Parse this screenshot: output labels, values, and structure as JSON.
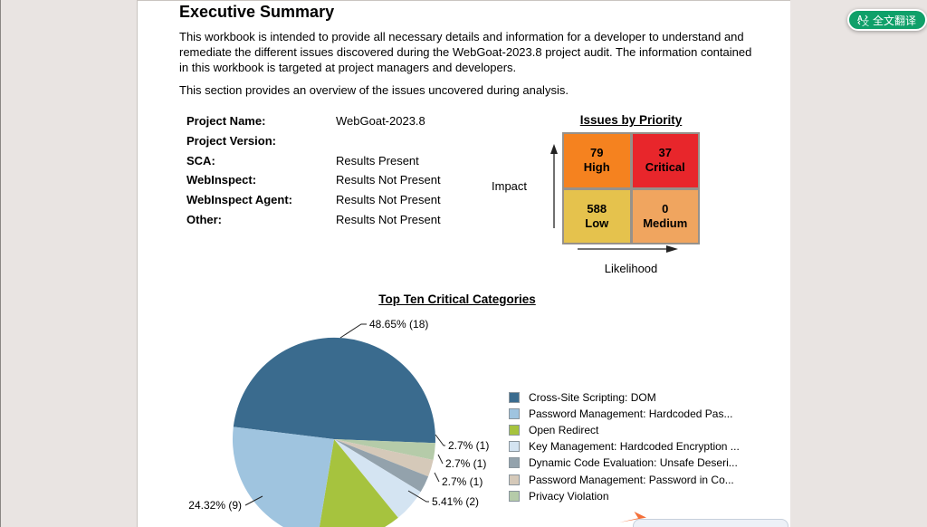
{
  "page": {
    "heading": "Executive Summary",
    "paragraph1": "This workbook is intended to provide all necessary details and information for a developer to understand and remediate the different issues discovered during the WebGoat-2023.8 project audit. The information contained in this workbook is targeted at project managers and developers.",
    "paragraph2": "This section provides an overview of the issues uncovered during analysis."
  },
  "fields": [
    {
      "label": "Project Name:",
      "value": "WebGoat-2023.8"
    },
    {
      "label": "Project Version:",
      "value": ""
    },
    {
      "label": "SCA:",
      "value": "Results Present"
    },
    {
      "label": "WebInspect:",
      "value": "Results Not Present"
    },
    {
      "label": "WebInspect Agent:",
      "value": "Results Not Present"
    },
    {
      "label": "Other:",
      "value": "Results Not Present"
    }
  ],
  "translate_button": {
    "label": "全文翻译"
  },
  "chart_data": [
    {
      "type": "heatmap",
      "title": "Issues by Priority",
      "xlabel": "Likelihood",
      "ylabel": "Impact",
      "cells": [
        {
          "count": "79",
          "label": "High",
          "color": "#f5821f"
        },
        {
          "count": "37",
          "label": "Critical",
          "color": "#e8262b"
        },
        {
          "count": "588",
          "label": "Low",
          "color": "#e5c24d"
        },
        {
          "count": "0",
          "label": "Medium",
          "color": "#f0a55f"
        }
      ]
    },
    {
      "type": "pie",
      "title": "Top Ten Critical Categories",
      "total": 37,
      "legend_position": "right",
      "slices": [
        {
          "name": "Cross-Site Scripting: DOM",
          "value": 18,
          "percent": 48.65,
          "color": "#3a6b8e"
        },
        {
          "name": "Password Management: Hardcoded Pas...",
          "value": 9,
          "percent": 24.32,
          "color": "#9fc4df"
        },
        {
          "name": "Open Redirect",
          "value": 5,
          "percent": 13.51,
          "color": "#a6c33e"
        },
        {
          "name": "Key Management: Hardcoded Encryption ...",
          "value": 2,
          "percent": 5.41,
          "color": "#d4e4f2"
        },
        {
          "name": "Dynamic Code Evaluation: Unsafe Deseri...",
          "value": 1,
          "percent": 2.7,
          "color": "#93a2ac"
        },
        {
          "name": "Password Management: Password in Co...",
          "value": 1,
          "percent": 2.7,
          "color": "#d5c9b9"
        },
        {
          "name": "Privacy Violation",
          "value": 1,
          "percent": 2.7,
          "color": "#b5cba9"
        }
      ],
      "visible_labels": [
        "48.65% (18)",
        "2.7% (1)",
        "2.7% (1)",
        "2.7% (1)",
        "5.41% (2)",
        "24.32% (9)"
      ]
    }
  ]
}
